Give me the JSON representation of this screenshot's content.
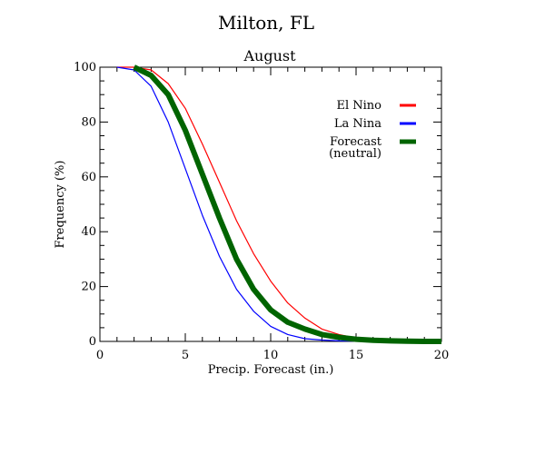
{
  "chart_data": {
    "type": "line",
    "title": "Milton, FL",
    "subtitle": "August",
    "xlabel": "Precip. Forecast (in.)",
    "ylabel": "Frequency (%)",
    "xlim": [
      0,
      20
    ],
    "ylim": [
      0,
      100
    ],
    "xticks": [
      0,
      5,
      10,
      15,
      20
    ],
    "yticks": [
      0,
      20,
      40,
      60,
      80,
      100
    ],
    "grid": false,
    "legend_position": "top-right",
    "series": [
      {
        "name": "El Nino",
        "color": "#ff0000",
        "line_weight": "thin",
        "x": [
          1,
          2,
          3,
          4,
          5,
          6,
          7,
          8,
          9,
          10,
          11,
          12,
          13,
          14,
          15,
          16,
          17,
          18,
          19,
          20
        ],
        "y": [
          100,
          100,
          99,
          94,
          85,
          72,
          58,
          44,
          32,
          22,
          14,
          8.5,
          4.5,
          2.5,
          1.2,
          0.6,
          0.3,
          0.15,
          0.05,
          0
        ]
      },
      {
        "name": "La Nina",
        "color": "#0000ff",
        "line_weight": "thin",
        "x": [
          1,
          2,
          3,
          4,
          5,
          6,
          7,
          8,
          9,
          10,
          11,
          12,
          13,
          14,
          15,
          16,
          17,
          18,
          19,
          20
        ],
        "y": [
          100,
          99,
          93,
          80,
          63,
          46,
          31,
          19,
          11,
          5.5,
          2.5,
          1,
          0.5,
          0.2,
          0.1,
          0.05,
          0,
          0,
          0,
          0
        ]
      },
      {
        "name": "Forecast\n(neutral)",
        "color": "#006400",
        "line_weight": "thick",
        "x": [
          2,
          3,
          4,
          5,
          6,
          7,
          8,
          9,
          10,
          11,
          12,
          13,
          14,
          15,
          16,
          17,
          18,
          19,
          20
        ],
        "y": [
          100,
          97,
          90,
          77,
          61,
          45,
          30,
          19,
          11.5,
          7,
          4.5,
          2.5,
          1.5,
          0.8,
          0.4,
          0.2,
          0.1,
          0,
          0
        ]
      }
    ]
  }
}
